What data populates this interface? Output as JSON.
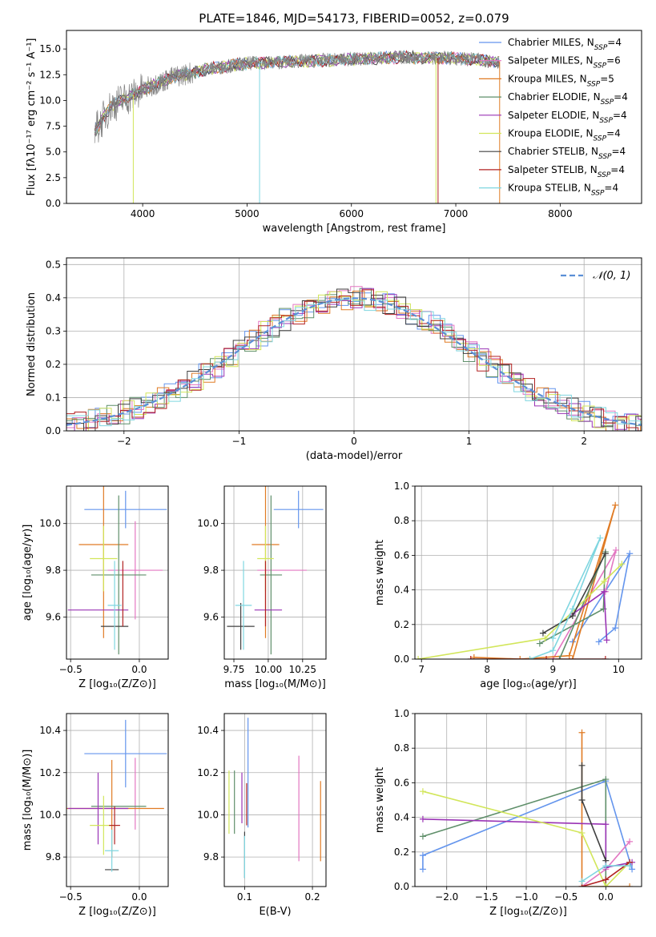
{
  "figure": {
    "title": "PLATE=1846, MJD=54173, FIBERID=0052, z=0.079"
  },
  "chart_data": [
    {
      "id": "spectrum",
      "type": "line",
      "title": "PLATE=1846, MJD=54173, FIBERID=0052, z=0.079",
      "xlabel": "wavelength [Angstrom, rest frame]",
      "ylabel": "Flux [fλ10⁻¹⁷ erg cm⁻² s⁻¹ A⁻¹]",
      "xlim": [
        3270,
        8780
      ],
      "ylim": [
        0,
        16.8
      ],
      "xticks": [
        4000,
        5000,
        6000,
        7000,
        8000
      ],
      "yticks": [
        0.0,
        2.5,
        5.0,
        7.5,
        10.0,
        12.5,
        15.0
      ],
      "grid": false,
      "legend_position": "right",
      "data_range_x": [
        3540,
        7420
      ],
      "observed_color": "#808080",
      "series": [
        {
          "name": "Chabrier MILES, N_SSP=4",
          "color": "#6495ed"
        },
        {
          "name": "Salpeter MILES, N_SSP=6",
          "color": "#e377c2"
        },
        {
          "name": "Kroupa MILES, N_SSP=5",
          "color": "#e07b24"
        },
        {
          "name": "Chabrier ELODIE, N_SSP=4",
          "color": "#5f8f6a"
        },
        {
          "name": "Salpeter ELODIE, N_SSP=4",
          "color": "#9a34b5"
        },
        {
          "name": "Kroupa ELODIE, N_SSP=4",
          "color": "#d2e65a"
        },
        {
          "name": "Chabrier STELIB, N_SSP=4",
          "color": "#404040"
        },
        {
          "name": "Salpeter STELIB, N_SSP=4",
          "color": "#b22222"
        },
        {
          "name": "Kroupa STELIB, N_SSP=4",
          "color": "#7fd6e0"
        }
      ],
      "continuum": [
        [
          3540,
          7.0
        ],
        [
          3700,
          9.5
        ],
        [
          3900,
          10.5
        ],
        [
          4100,
          11.5
        ],
        [
          4300,
          12.3
        ],
        [
          4600,
          13.0
        ],
        [
          5000,
          13.6
        ],
        [
          5500,
          13.8
        ],
        [
          6000,
          14.0
        ],
        [
          6500,
          14.2
        ],
        [
          7000,
          14.1
        ],
        [
          7400,
          13.8
        ]
      ],
      "absorption_features": [
        {
          "x": 3910,
          "label": "Kroupa ELODIE",
          "ymin": 0
        },
        {
          "x": 5120,
          "label": "Kroupa STELIB",
          "ymin": 0
        },
        {
          "x": 6810,
          "label": "Kroupa ELODIE",
          "ymin": 0
        },
        {
          "x": 6830,
          "label": "Salpeter STELIB",
          "ymin": 0
        },
        {
          "x": 7420,
          "label": "Kroupa MILES",
          "ymin": 0
        }
      ]
    },
    {
      "id": "residuals",
      "type": "bar",
      "xlabel": "(data-model)/error",
      "ylabel": "Normed distribution",
      "xlim": [
        -2.5,
        2.5
      ],
      "ylim": [
        0,
        0.52
      ],
      "xticks": [
        -2,
        -1,
        0,
        1,
        2
      ],
      "yticks": [
        0.0,
        0.1,
        0.2,
        0.3,
        0.4,
        0.5
      ],
      "grid": true,
      "legend_position": "top-right",
      "bin_width": 0.1,
      "normal_curve": {
        "label": "𝒩(0, 1)",
        "color": "#5b8fd6",
        "mean": 0,
        "std": 1,
        "amplitude": 0.399
      },
      "histogram_colors": [
        "#6495ed",
        "#e377c2",
        "#e07b24",
        "#5f8f6a",
        "#9a34b5",
        "#d2e65a",
        "#404040",
        "#b22222",
        "#7fd6e0"
      ]
    },
    {
      "id": "age_vs_Z",
      "type": "scatter",
      "xlabel": "Z [log₁₀(Z/Z⊙)]",
      "ylabel": "age  [log₁₀(age/yr)]",
      "xlim": [
        -0.53,
        0.21
      ],
      "ylim": [
        9.42,
        10.16
      ],
      "xticks": [
        -0.5,
        0.0
      ],
      "yticks": [
        9.6,
        9.8,
        10.0
      ],
      "grid": true,
      "points": [
        {
          "color": "#6495ed",
          "x": -0.1,
          "xerr": 0.3,
          "y": 10.06,
          "yerr": 0.08
        },
        {
          "color": "#e377c2",
          "x": -0.03,
          "xerr": 0.2,
          "y": 9.8,
          "yerr": 0.21
        },
        {
          "color": "#e07b24",
          "x": -0.26,
          "xerr": 0.18,
          "y": 9.91,
          "yerr": 0.4
        },
        {
          "color": "#5f8f6a",
          "x": -0.15,
          "xerr": 0.2,
          "y": 9.78,
          "yerr": 0.34
        },
        {
          "color": "#9a34b5",
          "x": -0.3,
          "xerr": 0.22,
          "y": 9.63,
          "yerr": 0.0
        },
        {
          "color": "#d2e65a",
          "x": -0.26,
          "xerr": 0.1,
          "y": 9.85,
          "yerr": 0.14
        },
        {
          "color": "#404040",
          "x": -0.18,
          "xerr": 0.1,
          "y": 9.56,
          "yerr": 0.0
        },
        {
          "color": "#b22222",
          "x": -0.12,
          "xerr": 0.0,
          "y": 9.7,
          "yerr": 0.14
        },
        {
          "color": "#7fd6e0",
          "x": -0.18,
          "xerr": 0.05,
          "y": 9.65,
          "yerr": 0.19
        }
      ]
    },
    {
      "id": "age_vs_mass",
      "type": "scatter",
      "xlabel": "mass [log₁₀(M/M⊙)]",
      "ylabel": "",
      "xlim": [
        9.68,
        10.42
      ],
      "ylim": [
        9.42,
        10.16
      ],
      "xticks": [
        9.75,
        10.0,
        10.25
      ],
      "yticks": [
        9.6,
        9.8,
        10.0
      ],
      "grid": true,
      "points": [
        {
          "color": "#6495ed",
          "x": 10.22,
          "xerr": 0.18,
          "y": 10.06,
          "yerr": 0.08
        },
        {
          "color": "#e377c2",
          "x": 10.1,
          "xerr": 0.18,
          "y": 9.8,
          "yerr": 0.0
        },
        {
          "color": "#e07b24",
          "x": 9.98,
          "xerr": 0.1,
          "y": 9.91,
          "yerr": 0.4
        },
        {
          "color": "#5f8f6a",
          "x": 10.02,
          "xerr": 0.08,
          "y": 9.78,
          "yerr": 0.34
        },
        {
          "color": "#9a34b5",
          "x": 10.0,
          "xerr": 0.1,
          "y": 9.63,
          "yerr": 0.0
        },
        {
          "color": "#d2e65a",
          "x": 9.98,
          "xerr": 0.06,
          "y": 9.85,
          "yerr": 0.14
        },
        {
          "color": "#404040",
          "x": 9.8,
          "xerr": 0.1,
          "y": 9.56,
          "yerr": 0.1
        },
        {
          "color": "#b22222",
          "x": 9.98,
          "xerr": 0.0,
          "y": 9.7,
          "yerr": 0.14
        },
        {
          "color": "#7fd6e0",
          "x": 9.82,
          "xerr": 0.06,
          "y": 9.65,
          "yerr": 0.19
        }
      ]
    },
    {
      "id": "weight_vs_age",
      "type": "line",
      "xlabel": "age  [log₁₀(age/yr)]",
      "ylabel": "mass weight",
      "xlim": [
        6.9,
        10.35
      ],
      "ylim": [
        0,
        1
      ],
      "xticks": [
        7,
        8,
        9,
        10
      ],
      "yticks": [
        0.0,
        0.2,
        0.4,
        0.6,
        0.8,
        1.0
      ],
      "grid": true,
      "series": [
        {
          "color": "#6495ed",
          "points": [
            [
              9.7,
              0.1
            ],
            [
              9.95,
              0.18
            ],
            [
              10.17,
              0.61
            ],
            [
              9.3,
              0.1
            ]
          ]
        },
        {
          "color": "#e377c2",
          "points": [
            [
              9.8,
              0.39
            ],
            [
              9.96,
              0.63
            ],
            [
              9.0,
              0.0
            ]
          ]
        },
        {
          "color": "#e07b24",
          "points": [
            [
              7.8,
              0.01
            ],
            [
              8.5,
              0.0
            ],
            [
              9.25,
              0.02
            ],
            [
              9.95,
              0.89
            ],
            [
              9.3,
              0.0
            ]
          ]
        },
        {
          "color": "#5f8f6a",
          "points": [
            [
              8.8,
              0.09
            ],
            [
              9.77,
              0.29
            ],
            [
              9.8,
              0.62
            ],
            [
              9.1,
              0.0
            ]
          ]
        },
        {
          "color": "#9a34b5",
          "points": [
            [
              9.3,
              0.26
            ],
            [
              9.78,
              0.39
            ],
            [
              9.82,
              0.11
            ]
          ]
        },
        {
          "color": "#d2e65a",
          "points": [
            [
              6.95,
              0.0
            ],
            [
              8.88,
              0.12
            ],
            [
              9.78,
              0.45
            ],
            [
              10.05,
              0.55
            ]
          ]
        },
        {
          "color": "#404040",
          "points": [
            [
              8.85,
              0.15
            ],
            [
              9.3,
              0.25
            ],
            [
              9.8,
              0.61
            ]
          ]
        },
        {
          "color": "#b22222",
          "points": [
            [
              7.75,
              0.0
            ],
            [
              8.9,
              0.0
            ],
            [
              9.8,
              0.0
            ]
          ]
        },
        {
          "color": "#7fd6e0",
          "points": [
            [
              8.65,
              0.0
            ],
            [
              9.0,
              0.05
            ],
            [
              9.3,
              0.29
            ],
            [
              9.72,
              0.7
            ],
            [
              9.0,
              0.12
            ]
          ]
        }
      ]
    },
    {
      "id": "mass_vs_Z",
      "type": "scatter",
      "xlabel": "Z [log₁₀(Z/Z⊙)]",
      "ylabel": "mass [log₁₀(M/M⊙)]",
      "xlim": [
        -0.53,
        0.21
      ],
      "ylim": [
        9.66,
        10.48
      ],
      "xticks": [
        -0.5,
        0.0
      ],
      "yticks": [
        9.8,
        10.0,
        10.2,
        10.4
      ],
      "grid": true,
      "points": [
        {
          "color": "#6495ed",
          "x": -0.1,
          "xerr": 0.3,
          "y": 10.29,
          "yerr": 0.16
        },
        {
          "color": "#e377c2",
          "x": -0.03,
          "xerr": 0.0,
          "y": 10.1,
          "yerr": 0.17
        },
        {
          "color": "#e07b24",
          "x": -0.2,
          "xerr": 0.38,
          "y": 10.03,
          "yerr": 0.23
        },
        {
          "color": "#5f8f6a",
          "x": -0.15,
          "xerr": 0.2,
          "y": 10.04,
          "yerr": 0.0
        },
        {
          "color": "#9a34b5",
          "x": -0.3,
          "xerr": 0.22,
          "y": 10.03,
          "yerr": 0.17
        },
        {
          "color": "#d2e65a",
          "x": -0.26,
          "xerr": 0.1,
          "y": 9.95,
          "yerr": 0.14
        },
        {
          "color": "#404040",
          "x": -0.2,
          "xerr": 0.05,
          "y": 9.74,
          "yerr": 0.0
        },
        {
          "color": "#b22222",
          "x": -0.18,
          "xerr": 0.04,
          "y": 9.95,
          "yerr": 0.09
        },
        {
          "color": "#7fd6e0",
          "x": -0.2,
          "xerr": 0.05,
          "y": 9.83,
          "yerr": 0.1
        }
      ]
    },
    {
      "id": "mass_vs_EBV",
      "type": "scatter",
      "xlabel": "E(B-V)",
      "ylabel": "",
      "xlim": [
        0.07,
        0.22
      ],
      "ylim": [
        9.66,
        10.48
      ],
      "xticks": [
        0.1,
        0.2
      ],
      "yticks": [
        9.8,
        10.0,
        10.2,
        10.4
      ],
      "grid": true,
      "points": [
        {
          "color": "#6495ed",
          "x": 0.105,
          "y": 10.2,
          "yerr": 0.26
        },
        {
          "color": "#e377c2",
          "x": 0.18,
          "y": 10.03,
          "yerr": 0.25
        },
        {
          "color": "#e07b24",
          "x": 0.212,
          "y": 9.97,
          "yerr": 0.19
        },
        {
          "color": "#5f8f6a",
          "x": 0.085,
          "y": 10.06,
          "yerr": 0.15
        },
        {
          "color": "#9a34b5",
          "x": 0.096,
          "y": 10.08,
          "yerr": 0.12
        },
        {
          "color": "#d2e65a",
          "x": 0.077,
          "y": 10.06,
          "yerr": 0.15
        },
        {
          "color": "#404040",
          "x": 0.1,
          "y": 9.81,
          "yerr": 0.11
        },
        {
          "color": "#b22222",
          "x": 0.103,
          "y": 10.05,
          "yerr": 0.1
        },
        {
          "color": "#7fd6e0",
          "x": 0.1,
          "y": 9.8,
          "yerr": 0.1
        }
      ]
    },
    {
      "id": "weight_vs_Z",
      "type": "line",
      "xlabel": "Z [log₁₀(Z/Z⊙)]",
      "ylabel": "mass weight",
      "xlim": [
        -2.4,
        0.45
      ],
      "ylim": [
        0,
        1
      ],
      "xticks": [
        -2.0,
        -1.5,
        -1.0,
        -0.5,
        0.0
      ],
      "yticks": [
        0.0,
        0.2,
        0.4,
        0.6,
        0.8,
        1.0
      ],
      "grid": true,
      "series": [
        {
          "color": "#6495ed",
          "points": [
            [
              -2.3,
              0.1
            ],
            [
              -2.3,
              0.18
            ],
            [
              0.0,
              0.61
            ],
            [
              0.33,
              0.1
            ]
          ]
        },
        {
          "color": "#e377c2",
          "points": [
            [
              -0.3,
              0.0
            ],
            [
              0.0,
              0.1
            ],
            [
              0.3,
              0.26
            ]
          ]
        },
        {
          "color": "#e07b24",
          "points": [
            [
              -0.3,
              0.89
            ],
            [
              -0.3,
              0.0
            ],
            [
              0.0,
              0.0
            ],
            [
              0.3,
              0.0
            ]
          ]
        },
        {
          "color": "#5f8f6a",
          "points": [
            [
              -2.3,
              0.29
            ],
            [
              0.0,
              0.62
            ],
            [
              0.0,
              0.0
            ]
          ]
        },
        {
          "color": "#9a34b5",
          "points": [
            [
              -2.3,
              0.39
            ],
            [
              0.0,
              0.36
            ],
            [
              0.0,
              0.11
            ],
            [
              0.33,
              0.14
            ]
          ]
        },
        {
          "color": "#d2e65a",
          "points": [
            [
              -2.3,
              0.55
            ],
            [
              -0.3,
              0.31
            ],
            [
              0.0,
              0.0
            ],
            [
              0.3,
              0.14
            ]
          ]
        },
        {
          "color": "#404040",
          "points": [
            [
              -0.3,
              0.7
            ],
            [
              -0.3,
              0.5
            ],
            [
              0.0,
              0.15
            ]
          ]
        },
        {
          "color": "#b22222",
          "points": [
            [
              -0.3,
              0.0
            ],
            [
              0.0,
              0.04
            ],
            [
              0.3,
              0.14
            ]
          ]
        },
        {
          "color": "#7fd6e0",
          "points": [
            [
              -0.3,
              0.03
            ],
            [
              0.0,
              0.12
            ],
            [
              0.3,
              0.12
            ]
          ]
        }
      ]
    }
  ]
}
